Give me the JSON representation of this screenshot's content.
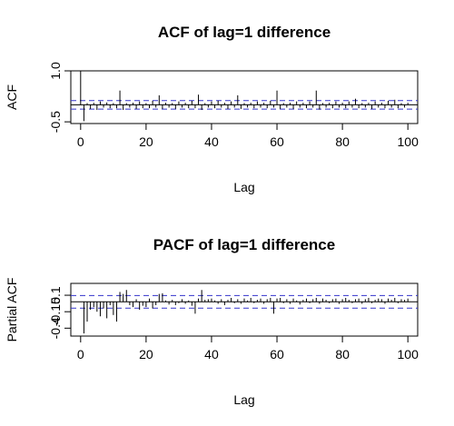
{
  "chart_data": [
    {
      "type": "bar",
      "title": "ACF of lag=1 difference",
      "xlabel": "Lag",
      "ylabel": "ACF",
      "xlim": [
        -3,
        103
      ],
      "ylim": [
        -0.55,
        1.0
      ],
      "xticks": [
        0,
        20,
        40,
        60,
        80,
        100
      ],
      "xtick_labels": [
        "0",
        "20",
        "40",
        "60",
        "80",
        "100"
      ],
      "yticks": [
        -0.5,
        1.0
      ],
      "ytick_labels": [
        "-0.5",
        "1.0"
      ],
      "ci_bound": 0.125,
      "ci_color": "#3333cc",
      "zero_line": true,
      "x": [
        0,
        1,
        2,
        3,
        4,
        5,
        6,
        7,
        8,
        9,
        10,
        11,
        12,
        13,
        14,
        15,
        16,
        17,
        18,
        19,
        20,
        21,
        22,
        23,
        24,
        25,
        26,
        27,
        28,
        29,
        30,
        31,
        32,
        33,
        34,
        35,
        36,
        37,
        38,
        39,
        40,
        41,
        42,
        43,
        44,
        45,
        46,
        47,
        48,
        49,
        50,
        51,
        52,
        53,
        54,
        55,
        56,
        57,
        58,
        59,
        60,
        61,
        62,
        63,
        64,
        65,
        66,
        67,
        68,
        69,
        70,
        71,
        72,
        73,
        74,
        75,
        76,
        77,
        78,
        79,
        80,
        81,
        82,
        83,
        84,
        85,
        86,
        87,
        88,
        89,
        90,
        91,
        92,
        93,
        94,
        95,
        96,
        97,
        98,
        99,
        100
      ],
      "values": [
        1.0,
        -0.48,
        0.05,
        -0.12,
        0.06,
        -0.15,
        0.1,
        -0.08,
        0.07,
        -0.1,
        0.05,
        -0.1,
        0.42,
        -0.15,
        0.05,
        -0.08,
        0.06,
        -0.12,
        0.1,
        -0.1,
        0.05,
        -0.1,
        0.12,
        -0.08,
        0.28,
        -0.12,
        0.06,
        -0.08,
        0.05,
        -0.12,
        0.1,
        -0.08,
        0.06,
        -0.1,
        0.12,
        -0.1,
        0.3,
        -0.15,
        0.05,
        -0.08,
        0.1,
        -0.1,
        0.12,
        -0.08,
        0.06,
        -0.12,
        0.1,
        -0.08,
        0.28,
        -0.12,
        0.05,
        -0.08,
        0.06,
        -0.1,
        0.1,
        -0.08,
        0.06,
        -0.1,
        0.12,
        -0.08,
        0.42,
        -0.12,
        0.05,
        -0.08,
        0.06,
        -0.12,
        0.1,
        -0.08,
        0.06,
        -0.1,
        0.1,
        -0.08,
        0.42,
        -0.14,
        0.05,
        -0.08,
        0.06,
        -0.1,
        0.1,
        -0.08,
        0.06,
        -0.1,
        0.1,
        -0.08,
        0.18,
        -0.1,
        0.05,
        -0.08,
        0.06,
        -0.12,
        0.1,
        -0.08,
        0.06,
        -0.1,
        0.12,
        -0.08,
        0.15,
        -0.1,
        0.05,
        -0.08,
        0.06
      ]
    },
    {
      "type": "bar",
      "title": "PACF of lag=1 difference",
      "xlabel": "Lag",
      "ylabel": "Partial ACF",
      "xlim": [
        -3,
        103
      ],
      "ylim": [
        -0.52,
        0.28
      ],
      "xticks": [
        0,
        20,
        40,
        60,
        80,
        100
      ],
      "xtick_labels": [
        "0",
        "20",
        "40",
        "60",
        "80",
        "100"
      ],
      "yticks": [
        -0.4,
        -0.15,
        0.1
      ],
      "ytick_labels": [
        "-0.4",
        "-0.15",
        "0.1"
      ],
      "ci_bound": 0.095,
      "ci_color": "#3333cc",
      "zero_line": true,
      "x": [
        1,
        2,
        3,
        4,
        5,
        6,
        7,
        8,
        9,
        10,
        11,
        12,
        13,
        14,
        15,
        16,
        17,
        18,
        19,
        20,
        21,
        22,
        23,
        24,
        25,
        26,
        27,
        28,
        29,
        30,
        31,
        32,
        33,
        34,
        35,
        36,
        37,
        38,
        39,
        40,
        41,
        42,
        43,
        44,
        45,
        46,
        47,
        48,
        49,
        50,
        51,
        52,
        53,
        54,
        55,
        56,
        57,
        58,
        59,
        60,
        61,
        62,
        63,
        64,
        65,
        66,
        67,
        68,
        69,
        70,
        71,
        72,
        73,
        74,
        75,
        76,
        77,
        78,
        79,
        80,
        81,
        82,
        83,
        84,
        85,
        86,
        87,
        88,
        89,
        90,
        91,
        92,
        93,
        94,
        95,
        96,
        97,
        98,
        99,
        100
      ],
      "values": [
        -0.48,
        -0.3,
        -0.12,
        -0.08,
        -0.15,
        -0.22,
        -0.1,
        -0.25,
        -0.05,
        -0.2,
        -0.3,
        0.15,
        0.12,
        0.18,
        -0.05,
        -0.08,
        0.04,
        -0.12,
        -0.06,
        -0.08,
        0.05,
        -0.1,
        -0.05,
        0.12,
        0.13,
        0.02,
        -0.04,
        0.03,
        -0.05,
        -0.02,
        0.04,
        -0.03,
        0.02,
        -0.06,
        -0.18,
        0.05,
        0.18,
        0.03,
        0.04,
        0.05,
        0.02,
        -0.03,
        0.04,
        -0.05,
        0.03,
        0.06,
        -0.02,
        0.04,
        -0.03,
        0.05,
        0.02,
        0.06,
        -0.02,
        0.03,
        0.05,
        -0.03,
        0.04,
        0.06,
        -0.18,
        0.05,
        0.06,
        -0.02,
        0.04,
        -0.03,
        0.05,
        0.02,
        -0.04,
        0.03,
        0.05,
        -0.02,
        0.04,
        0.06,
        -0.03,
        0.05,
        0.03,
        -0.02,
        0.04,
        0.05,
        -0.03,
        0.04,
        0.06,
        0.03,
        -0.02,
        0.04,
        0.05,
        -0.03,
        0.04,
        0.06,
        -0.02,
        0.03,
        0.05,
        0.04,
        -0.03,
        0.05,
        0.03,
        0.06,
        -0.02,
        0.04,
        0.03,
        0.05
      ]
    }
  ]
}
